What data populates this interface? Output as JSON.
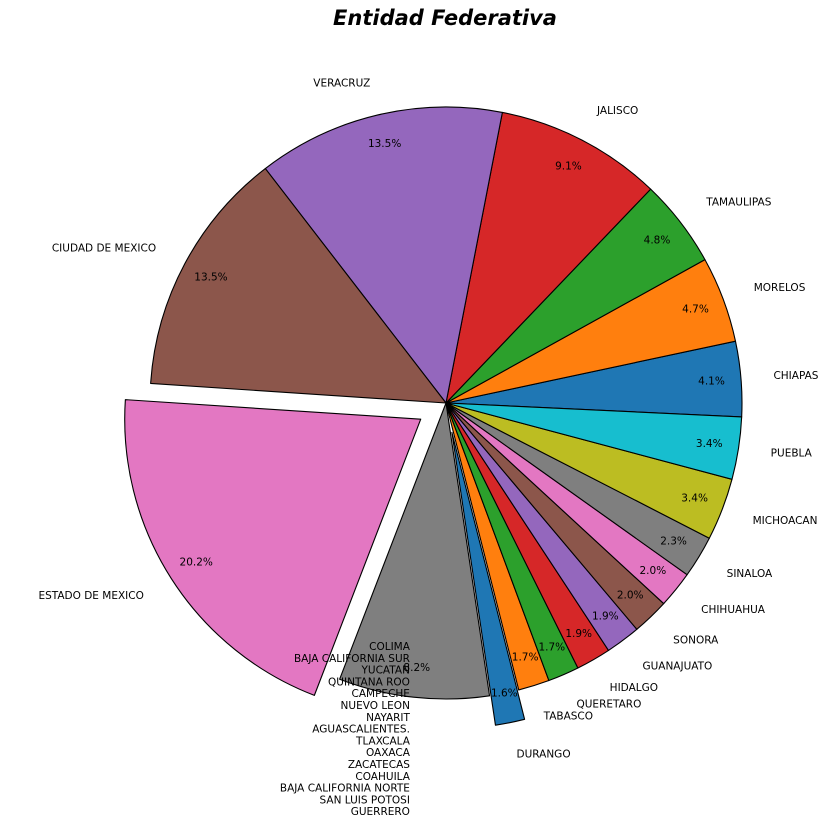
{
  "chart_data": {
    "type": "pie",
    "title": "Entidad Federativa",
    "slices": [
      {
        "label": "CHIAPAS",
        "value": 4.1,
        "pct_label": "4.1%",
        "color": "#1f77b4",
        "explode": false
      },
      {
        "label": "MORELOS",
        "value": 4.7,
        "pct_label": "4.7%",
        "color": "#ff7f0e",
        "explode": false
      },
      {
        "label": "TAMAULIPAS",
        "value": 4.8,
        "pct_label": "4.8%",
        "color": "#2ca02c",
        "explode": false
      },
      {
        "label": "JALISCO",
        "value": 9.1,
        "pct_label": "9.1%",
        "color": "#d62728",
        "explode": false
      },
      {
        "label": "VERACRUZ",
        "value": 13.5,
        "pct_label": "13.5%",
        "color": "#9467bd",
        "explode": false
      },
      {
        "label": "CIUDAD DE MEXICO",
        "value": 13.5,
        "pct_label": "13.5%",
        "color": "#8c564b",
        "explode": false
      },
      {
        "label": "ESTADO DE MEXICO",
        "value": 20.2,
        "pct_label": "20.2%",
        "color": "#e377c2",
        "explode": true
      },
      {
        "label": "COLIMA\nBAJA CALIFORNIA SUR\nYUCATAN\nQUINTANA ROO\nCAMPECHE\nNUEVO LEON\nNAYARIT\nAGUASCALIENTES.\nTLAXCALA\nOAXACA\nZACATECAS\nCOAHUILA\nBAJA CALIFORNIA NORTE\nSAN LUIS POTOSI\nGUERRERO",
        "value": 8.2,
        "pct_label": "8.2%",
        "color": "#7f7f7f",
        "explode": false
      },
      {
        "label": "DURANGO",
        "value": 1.6,
        "pct_label": "1.6%",
        "color": "#1f77b4",
        "explode": true
      },
      {
        "label": "TABASCO",
        "value": 1.7,
        "pct_label": "1.7%",
        "color": "#ff7f0e",
        "explode": false
      },
      {
        "label": "QUERETARO",
        "value": 1.7,
        "pct_label": "1.7%",
        "color": "#2ca02c",
        "explode": false
      },
      {
        "label": "HIDALGO",
        "value": 1.9,
        "pct_label": "1.9%",
        "color": "#d62728",
        "explode": false
      },
      {
        "label": "GUANAJUATO",
        "value": 1.9,
        "pct_label": "1.9%",
        "color": "#9467bd",
        "explode": false
      },
      {
        "label": "SONORA",
        "value": 2.0,
        "pct_label": "2.0%",
        "color": "#8c564b",
        "explode": false
      },
      {
        "label": "CHIHUAHUA",
        "value": 2.0,
        "pct_label": "2.0%",
        "color": "#e377c2",
        "explode": false
      },
      {
        "label": "SINALOA",
        "value": 2.3,
        "pct_label": "2.3%",
        "color": "#7f7f7f",
        "explode": false
      },
      {
        "label": "MICHOACAN",
        "value": 3.4,
        "pct_label": "3.4%",
        "color": "#bcbd22",
        "explode": false
      },
      {
        "label": "PUEBLA",
        "value": 3.4,
        "pct_label": "3.4%",
        "color": "#17becf",
        "explode": false
      }
    ]
  }
}
